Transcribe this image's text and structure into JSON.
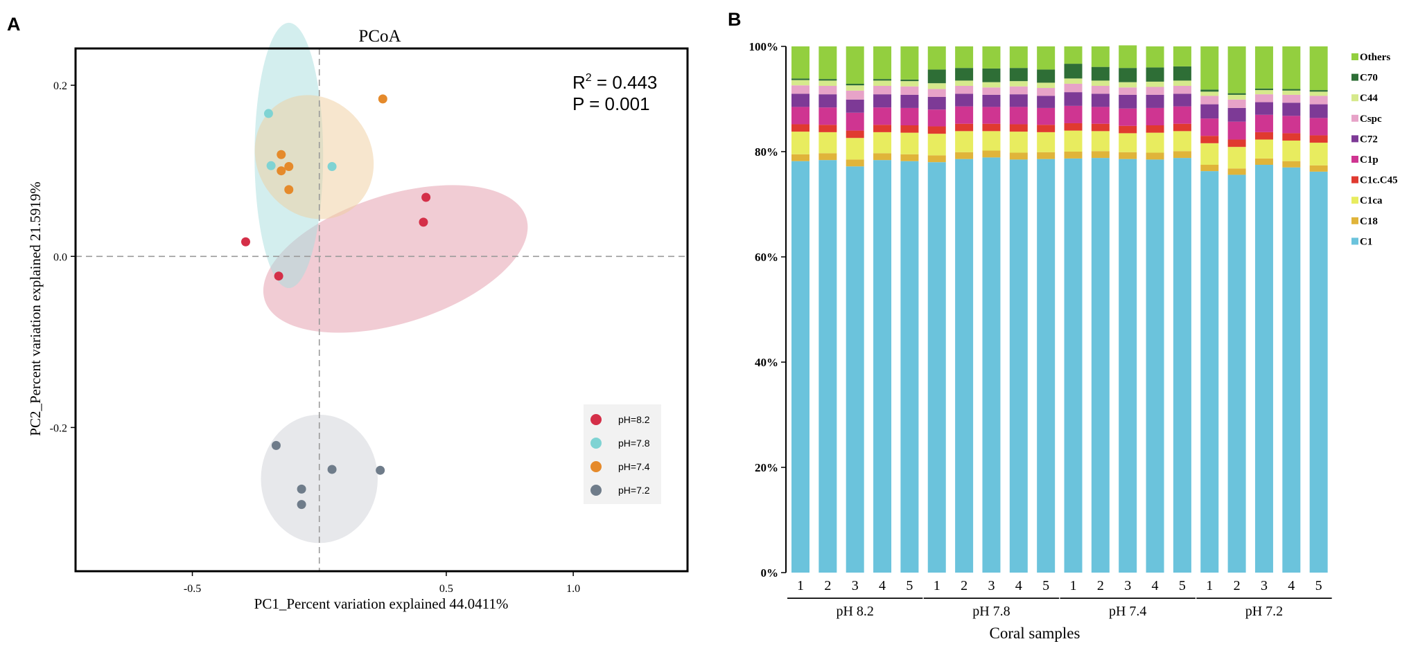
{
  "panels": {
    "a_label": "A",
    "b_label": "B"
  },
  "chart_data": [
    {
      "type": "scatter",
      "title": "PCoA",
      "xlabel": "PC1_Percent variation explained 44.0411%",
      "ylabel": "PC2_Percent variation explained 21.5919%",
      "xlim": [
        -0.96,
        1.45
      ],
      "ylim": [
        -0.368,
        0.243
      ],
      "x_ticks": [
        -0.5,
        0.5,
        1.0
      ],
      "x_tick_labels": [
        "-0.5",
        "0.5",
        "1.0"
      ],
      "y_ticks": [
        -0.2,
        0.0,
        0.2
      ],
      "y_tick_labels": [
        "-0.2",
        "0.0",
        "0.2"
      ],
      "reference_lines": {
        "x": 0,
        "y": 0
      },
      "stats": {
        "r2_label": "R",
        "r2_sup": "2",
        "r2_text": " = 0.443",
        "p_text": "P = 0.001"
      },
      "legend_position": "bottom-right",
      "series": [
        {
          "name": "pH=8.2",
          "color": "#d42f48",
          "points": [
            [
              0.42,
              0.069
            ],
            [
              0.41,
              0.04
            ],
            [
              -0.29,
              0.017
            ],
            [
              -0.16,
              -0.023
            ]
          ],
          "ellipse": {
            "cx": 0.3,
            "cy": -0.003,
            "rx": 1.08,
            "ry": 0.075,
            "angle_deg": 17.5,
            "fill": "#e49aaa"
          }
        },
        {
          "name": "pH=7.8",
          "color": "#7fd3d3",
          "points": [
            [
              -0.2,
              0.167
            ],
            [
              -0.19,
              0.106
            ],
            [
              0.05,
              0.105
            ]
          ],
          "ellipse": {
            "cx": -0.12,
            "cy": 0.118,
            "rx": 0.27,
            "ry": 0.155,
            "angle_deg": 0,
            "fill": "#a8dede"
          }
        },
        {
          "name": "pH=7.4",
          "color": "#e58a2b",
          "points": [
            [
              0.25,
              0.184
            ],
            [
              -0.15,
              0.119
            ],
            [
              -0.15,
              0.1
            ],
            [
              -0.12,
              0.105
            ],
            [
              -0.12,
              0.078
            ]
          ],
          "ellipse": {
            "cx": -0.02,
            "cy": 0.116,
            "rx": 0.45,
            "ry": 0.075,
            "angle_deg": 34,
            "fill": "#f0cd9e"
          }
        },
        {
          "name": "pH=7.2",
          "color": "#6f7c8a",
          "points": [
            [
              -0.17,
              -0.221
            ],
            [
              0.05,
              -0.249
            ],
            [
              0.24,
              -0.25
            ],
            [
              -0.07,
              -0.272
            ],
            [
              -0.07,
              -0.29
            ]
          ],
          "ellipse": {
            "cx": 0.0,
            "cy": -0.26,
            "rx": 0.46,
            "ry": 0.075,
            "angle_deg": 0,
            "fill": "#cfd2d8"
          }
        }
      ]
    },
    {
      "type": "bar",
      "stacked": true,
      "xlabel": "Coral samples",
      "ylabel": "",
      "ylim": [
        0,
        100
      ],
      "y_ticks": [
        0,
        20,
        40,
        60,
        80,
        100
      ],
      "y_tick_labels": [
        "0%",
        "20%",
        "40%",
        "60%",
        "80%",
        "100%"
      ],
      "categories": [
        "1",
        "2",
        "3",
        "4",
        "5",
        "1",
        "2",
        "3",
        "4",
        "5",
        "1",
        "2",
        "3",
        "4",
        "5",
        "1",
        "2",
        "3",
        "4",
        "5"
      ],
      "groups": [
        {
          "label": "pH 8.2",
          "count": 5
        },
        {
          "label": "pH 7.8",
          "count": 5
        },
        {
          "label": "pH 7.4",
          "count": 5
        },
        {
          "label": "pH 7.2",
          "count": 5
        }
      ],
      "legend_position": "right",
      "series": [
        {
          "name": "C1",
          "color": "#6bc3dc",
          "values": [
            78.2,
            78.4,
            77.2,
            78.4,
            78.2,
            78.0,
            78.6,
            78.9,
            78.5,
            78.6,
            78.7,
            78.8,
            78.6,
            78.5,
            78.8,
            76.3,
            75.6,
            77.5,
            77.0,
            76.2
          ]
        },
        {
          "name": "C18",
          "color": "#e0b43a",
          "values": [
            1.3,
            1.3,
            1.3,
            1.3,
            1.3,
            1.3,
            1.3,
            1.3,
            1.3,
            1.3,
            1.3,
            1.3,
            1.3,
            1.3,
            1.3,
            1.2,
            1.2,
            1.2,
            1.2,
            1.2
          ]
        },
        {
          "name": "C1ca",
          "color": "#e8ec5f",
          "values": [
            4.3,
            4.0,
            4.1,
            4.0,
            4.1,
            4.1,
            4.0,
            3.7,
            4.0,
            3.8,
            4.0,
            3.8,
            3.6,
            3.8,
            3.8,
            4.1,
            4.1,
            3.6,
            3.9,
            4.3
          ]
        },
        {
          "name": "C1c.C45",
          "color": "#e03a30",
          "values": [
            1.4,
            1.4,
            1.4,
            1.4,
            1.4,
            1.4,
            1.4,
            1.4,
            1.4,
            1.4,
            1.4,
            1.4,
            1.4,
            1.4,
            1.4,
            1.4,
            1.4,
            1.4,
            1.4,
            1.4
          ]
        },
        {
          "name": "C1p",
          "color": "#cf3591",
          "values": [
            3.3,
            3.3,
            3.4,
            3.3,
            3.3,
            3.2,
            3.3,
            3.2,
            3.3,
            3.2,
            3.3,
            3.2,
            3.3,
            3.3,
            3.3,
            3.3,
            3.4,
            3.3,
            3.3,
            3.3
          ]
        },
        {
          "name": "C72",
          "color": "#7d3a96",
          "values": [
            2.5,
            2.5,
            2.5,
            2.5,
            2.5,
            2.4,
            2.4,
            2.3,
            2.4,
            2.3,
            2.6,
            2.5,
            2.6,
            2.5,
            2.4,
            2.7,
            2.6,
            2.4,
            2.5,
            2.6
          ]
        },
        {
          "name": "Cspc",
          "color": "#e7a3c8",
          "values": [
            1.6,
            1.6,
            1.7,
            1.6,
            1.6,
            1.5,
            1.5,
            1.4,
            1.5,
            1.5,
            1.6,
            1.5,
            1.4,
            1.5,
            1.5,
            1.6,
            1.6,
            1.5,
            1.5,
            1.6
          ]
        },
        {
          "name": "C44",
          "color": "#d6e98c",
          "values": [
            1.0,
            1.0,
            1.0,
            1.0,
            1.0,
            1.1,
            1.0,
            1.0,
            1.0,
            1.0,
            1.0,
            1.0,
            1.0,
            1.0,
            1.0,
            0.8,
            0.9,
            0.8,
            0.8,
            0.8
          ]
        },
        {
          "name": "C70",
          "color": "#2e6e36",
          "values": [
            0.3,
            0.3,
            0.3,
            0.3,
            0.3,
            2.6,
            2.4,
            2.6,
            2.5,
            2.5,
            2.8,
            2.6,
            2.7,
            2.7,
            2.7,
            0.4,
            0.3,
            0.3,
            0.3,
            0.3
          ]
        },
        {
          "name": "Others",
          "color": "#93cf3f",
          "values": [
            6.1,
            6.2,
            7.1,
            6.2,
            6.3,
            4.4,
            4.1,
            4.2,
            4.1,
            4.4,
            3.3,
            3.9,
            4.3,
            4.0,
            3.8,
            8.2,
            8.9,
            8.0,
            8.1,
            8.3
          ]
        }
      ]
    }
  ]
}
